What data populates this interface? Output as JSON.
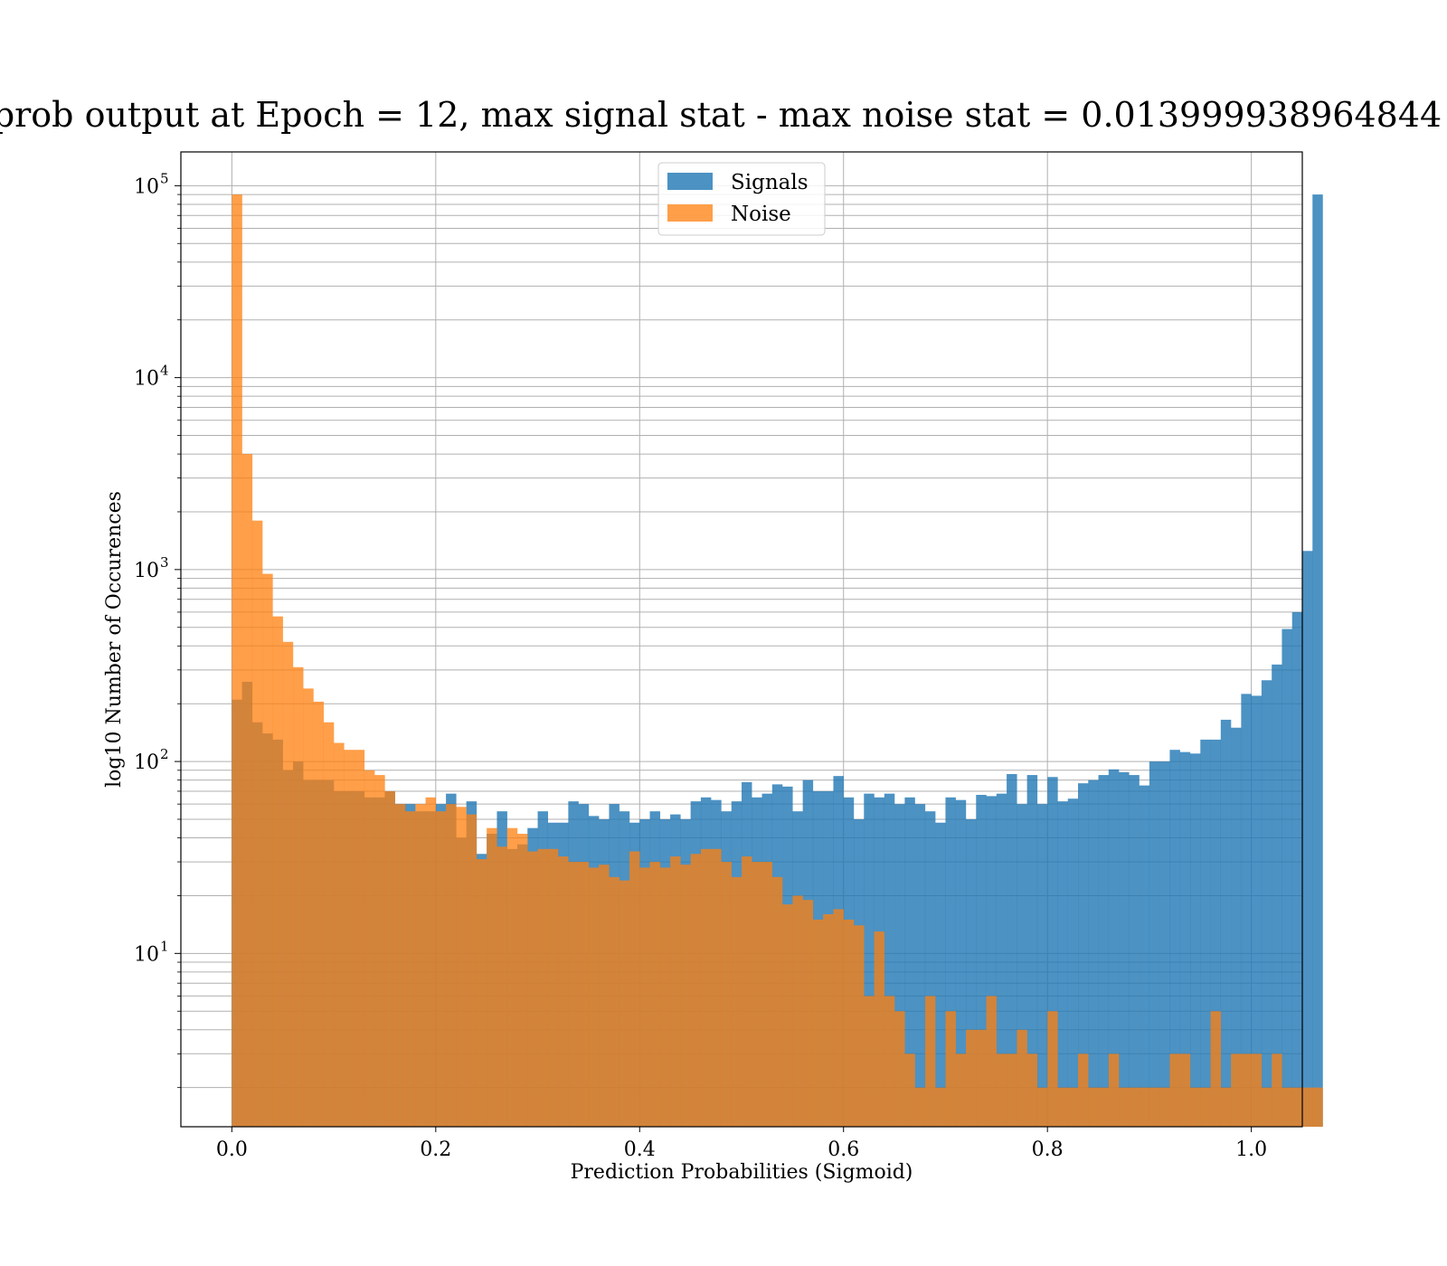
{
  "chart_data": {
    "type": "bar",
    "title": "prob output at Epoch = 12, max signal stat - max noise stat = 0.013999938964844",
    "xlabel": "Prediction Probabilities (Sigmoid)",
    "ylabel": "log10 Number of Occurences",
    "xlim": [
      -0.05,
      1.05
    ],
    "ylim": [
      1.25,
      150000
    ],
    "yscale": "log",
    "grid": true,
    "legend_position": "top-center",
    "x_ticks": [
      "0.0",
      "0.2",
      "0.4",
      "0.6",
      "0.8",
      "1.0"
    ],
    "x_tick_values": [
      0.0,
      0.2,
      0.4,
      0.6,
      0.8,
      1.0
    ],
    "y_ticks": [
      {
        "base": "10",
        "exp": "1",
        "value": 10
      },
      {
        "base": "10",
        "exp": "2",
        "value": 100
      },
      {
        "base": "10",
        "exp": "3",
        "value": 1000
      },
      {
        "base": "10",
        "exp": "4",
        "value": 10000
      },
      {
        "base": "10",
        "exp": "5",
        "value": 100000
      }
    ],
    "bin_width": 0.01,
    "bin_start": 0.0,
    "series": [
      {
        "name": "Signals",
        "color": "#1f77b4",
        "alpha": 0.8,
        "values": [
          210,
          260,
          160,
          140,
          130,
          90,
          100,
          80,
          80,
          80,
          70,
          70,
          70,
          65,
          65,
          70,
          60,
          60,
          55,
          55,
          60,
          68,
          40,
          62,
          33,
          42,
          55,
          35,
          37,
          45,
          55,
          48,
          48,
          62,
          60,
          52,
          50,
          60,
          55,
          48,
          50,
          55,
          50,
          53,
          50,
          62,
          65,
          63,
          55,
          62,
          78,
          65,
          68,
          76,
          74,
          55,
          80,
          70,
          70,
          84,
          65,
          50,
          68,
          65,
          68,
          60,
          65,
          60,
          55,
          48,
          65,
          63,
          50,
          67,
          66,
          68,
          86,
          60,
          85,
          60,
          83,
          62,
          64,
          77,
          80,
          85,
          91,
          88,
          85,
          75,
          100,
          100,
          115,
          112,
          110,
          130,
          130,
          165,
          150,
          225,
          220,
          265,
          320,
          490,
          600,
          1250,
          90000
        ]
      },
      {
        "name": "Noise",
        "color": "#ff7f0e",
        "alpha": 0.75,
        "values": [
          90000,
          4000,
          1800,
          950,
          570,
          420,
          310,
          240,
          205,
          160,
          125,
          115,
          115,
          90,
          85,
          70,
          60,
          55,
          60,
          65,
          55,
          60,
          58,
          53,
          31,
          45,
          36,
          45,
          42,
          34,
          35,
          35,
          32,
          30,
          30,
          28,
          29,
          25,
          24,
          34,
          28,
          30,
          28,
          32,
          29,
          33,
          35,
          35,
          30,
          25,
          32,
          30,
          30,
          25,
          18,
          20,
          19,
          15,
          16,
          17,
          15,
          14,
          6,
          13,
          6,
          5,
          3,
          2,
          6,
          2,
          5,
          3,
          4,
          4,
          6,
          3,
          3,
          4,
          3,
          2,
          5,
          2,
          2,
          3,
          2,
          2,
          3,
          2,
          2,
          2,
          2,
          2,
          3,
          3,
          2,
          2,
          5,
          2,
          3,
          3,
          3,
          2,
          3,
          2,
          2,
          2,
          2
        ]
      }
    ]
  }
}
